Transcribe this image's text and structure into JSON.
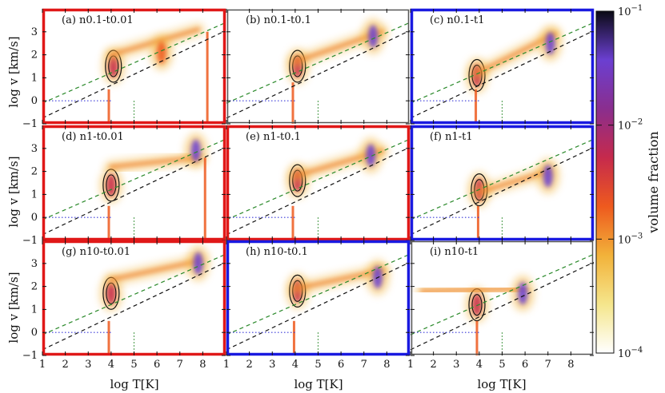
{
  "chart_data": {
    "type": "heatmap",
    "title": "",
    "xlabel": "log T[K]",
    "ylabel": "log v [km/s]",
    "xlim": [
      1,
      9
    ],
    "ylim": [
      -1,
      4
    ],
    "xticks": [
      "1",
      "2",
      "3",
      "4",
      "5",
      "6",
      "7",
      "8"
    ],
    "yticks": [
      "-1",
      "0",
      "1",
      "2",
      "3"
    ],
    "colorbar": {
      "label": "volume fraction",
      "scale": "log",
      "range": [
        0.0001,
        0.1
      ],
      "ticks": [
        {
          "base": "10",
          "exp": "-1",
          "value": 0.1
        },
        {
          "base": "10",
          "exp": "-2",
          "value": 0.01
        },
        {
          "base": "10",
          "exp": "-3",
          "value": 0.001
        },
        {
          "base": "10",
          "exp": "-4",
          "value": 0.0001
        }
      ],
      "colors": [
        "#ffffff",
        "#f5e68c",
        "#f2b23a",
        "#ee5a1e",
        "#c62a4c",
        "#8a2e8e",
        "#6b3fd1",
        "#0a0a14"
      ]
    },
    "reference_lines": [
      {
        "name": "green dashed",
        "color": "#2c8a2c",
        "points": [
          [
            1,
            -0.1
          ],
          [
            9,
            3.4
          ]
        ]
      },
      {
        "name": "black dashed",
        "color": "#111111",
        "points": [
          [
            1,
            -0.75
          ],
          [
            9,
            3.05
          ]
        ]
      },
      {
        "name": "blue dotted",
        "color": "#3b3bd9",
        "points": [
          [
            1,
            0
          ],
          [
            4,
            0
          ]
        ]
      },
      {
        "name": "green dotted",
        "color": "#2c8a2c",
        "points": [
          [
            5,
            0
          ],
          [
            5,
            -1
          ]
        ]
      }
    ],
    "panels": [
      {
        "id": "a",
        "label": "(a) n0.1-t0.01",
        "border": "#e01818",
        "features": [
          {
            "type": "blob",
            "x": 4.1,
            "y": 1.5,
            "strength": "dark"
          },
          {
            "type": "ridge",
            "from": [
              4,
              2.0
            ],
            "to": [
              7.8,
              3.1
            ]
          },
          {
            "type": "blob",
            "x": 6.2,
            "y": 2.1,
            "strength": "mid"
          },
          {
            "type": "vspike",
            "x": 8.2,
            "from": -1,
            "to": 3.0
          },
          {
            "type": "vspike",
            "x": 3.9,
            "from": -1,
            "to": 0.5
          }
        ]
      },
      {
        "id": "b",
        "label": "(b) n0.1-t0.1",
        "border": "#555555",
        "features": [
          {
            "type": "blob",
            "x": 4.1,
            "y": 1.5,
            "strength": "dark"
          },
          {
            "type": "ridge",
            "from": [
              4,
              1.7
            ],
            "to": [
              7.8,
              3.0
            ]
          },
          {
            "type": "blob",
            "x": 7.4,
            "y": 2.8,
            "strength": "purple"
          },
          {
            "type": "vspike",
            "x": 3.9,
            "from": -1,
            "to": 0.8
          }
        ]
      },
      {
        "id": "c",
        "label": "(c) n0.1-t1",
        "border": "#1a1ae0",
        "features": [
          {
            "type": "blob",
            "x": 3.9,
            "y": 1.1,
            "strength": "dark"
          },
          {
            "type": "ridge",
            "from": [
              3.9,
              1.2
            ],
            "to": [
              7.3,
              2.9
            ]
          },
          {
            "type": "blob",
            "x": 7.1,
            "y": 2.5,
            "strength": "purple"
          },
          {
            "type": "vspike",
            "x": 3.85,
            "from": -1,
            "to": 0.5
          }
        ]
      },
      {
        "id": "d",
        "label": "(d) n1-t0.01",
        "border": "#e01818",
        "features": [
          {
            "type": "blob",
            "x": 4.0,
            "y": 1.4,
            "strength": "dark"
          },
          {
            "type": "ridge",
            "from": [
              4,
              2.2
            ],
            "to": [
              7.8,
              2.6
            ]
          },
          {
            "type": "blob",
            "x": 7.7,
            "y": 2.9,
            "strength": "purple"
          },
          {
            "type": "vspike",
            "x": 8.1,
            "from": -1,
            "to": 2.6
          },
          {
            "type": "vspike",
            "x": 3.9,
            "from": -1,
            "to": 0.5
          }
        ]
      },
      {
        "id": "e",
        "label": "(e) n1-t0.1",
        "border": "#e01818",
        "features": [
          {
            "type": "blob",
            "x": 4.1,
            "y": 1.6,
            "strength": "dark"
          },
          {
            "type": "ridge",
            "from": [
              4,
              1.8
            ],
            "to": [
              7.8,
              2.9
            ]
          },
          {
            "type": "blob",
            "x": 7.3,
            "y": 2.7,
            "strength": "purple"
          },
          {
            "type": "vspike",
            "x": 3.9,
            "from": -1,
            "to": 0.5
          }
        ]
      },
      {
        "id": "f",
        "label": "(f) n1-t1",
        "border": "#1a1ae0",
        "features": [
          {
            "type": "blob",
            "x": 4.0,
            "y": 1.2,
            "strength": "dark"
          },
          {
            "type": "ridge",
            "from": [
              4,
              1.1
            ],
            "to": [
              7,
              2.0
            ]
          },
          {
            "type": "blob",
            "x": 7.0,
            "y": 1.8,
            "strength": "purple"
          },
          {
            "type": "vspike",
            "x": 3.95,
            "from": -1,
            "to": 0.5
          }
        ]
      },
      {
        "id": "g",
        "label": "(g) n10-t0.01",
        "border": "#e01818",
        "features": [
          {
            "type": "blob",
            "x": 4.0,
            "y": 1.7,
            "strength": "dark"
          },
          {
            "type": "ridge",
            "from": [
              4,
              2.3
            ],
            "to": [
              7.8,
              3.1
            ]
          },
          {
            "type": "blob",
            "x": 7.8,
            "y": 3.0,
            "strength": "purple"
          },
          {
            "type": "vspike",
            "x": 3.9,
            "from": -1,
            "to": 0.5
          }
        ]
      },
      {
        "id": "h",
        "label": "(h) n10-t0.1",
        "border": "#1a1ae0",
        "features": [
          {
            "type": "blob",
            "x": 4.1,
            "y": 1.8,
            "strength": "dark"
          },
          {
            "type": "ridge",
            "from": [
              4,
              1.9
            ],
            "to": [
              7.8,
              2.7
            ]
          },
          {
            "type": "blob",
            "x": 7.6,
            "y": 2.4,
            "strength": "purple"
          },
          {
            "type": "vspike",
            "x": 3.95,
            "from": -1,
            "to": 0.5
          }
        ]
      },
      {
        "id": "i",
        "label": "(i) n10-t1",
        "border": "#555555",
        "features": [
          {
            "type": "blob",
            "x": 3.9,
            "y": 1.2,
            "strength": "dark"
          },
          {
            "type": "ridge",
            "from": [
              1.5,
              1.8
            ],
            "to": [
              5.9,
              1.9
            ]
          },
          {
            "type": "blob",
            "x": 5.9,
            "y": 1.7,
            "strength": "purple"
          },
          {
            "type": "vspike",
            "x": 3.9,
            "from": -1,
            "to": 0.5
          }
        ]
      }
    ]
  }
}
